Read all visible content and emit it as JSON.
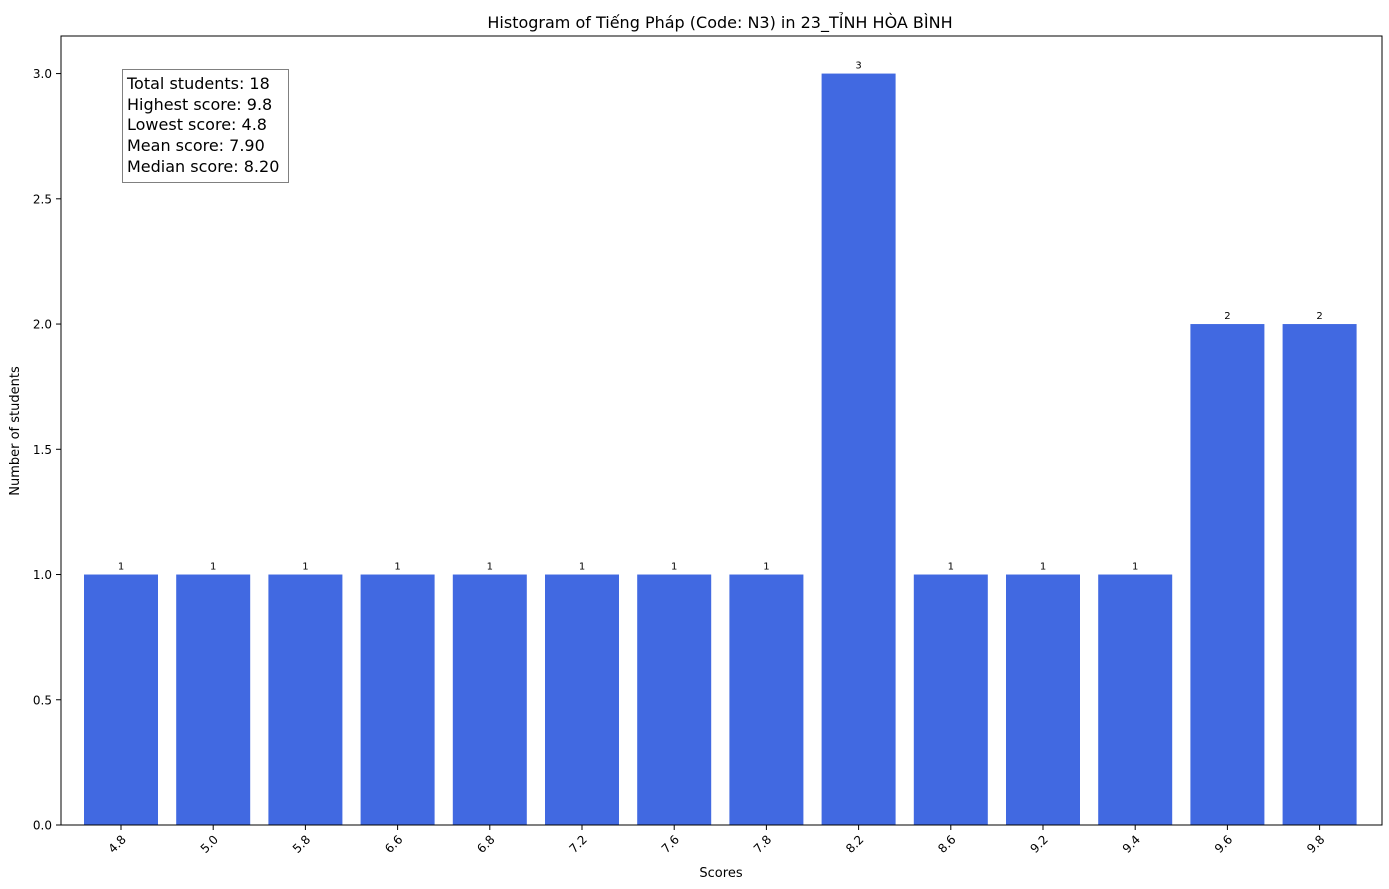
{
  "chart_data": {
    "type": "bar",
    "title": "Histogram of Tiếng Pháp (Code: N3) in 23_TỈNH HÒA BÌNH",
    "xlabel": "Scores",
    "ylabel": "Number of students",
    "categories": [
      "4.8",
      "5.0",
      "5.8",
      "6.6",
      "6.8",
      "7.2",
      "7.6",
      "7.8",
      "8.2",
      "8.6",
      "9.2",
      "9.4",
      "9.6",
      "9.8"
    ],
    "values": [
      1,
      1,
      1,
      1,
      1,
      1,
      1,
      1,
      3,
      1,
      1,
      1,
      2,
      2
    ],
    "ylim": [
      0,
      3.15
    ],
    "yticks": [
      "0.0",
      "0.5",
      "1.0",
      "1.5",
      "2.0",
      "2.5",
      "3.0"
    ],
    "bar_color": "#4169e1",
    "grid": false,
    "annotation": {
      "total": "Total students: 18",
      "highest": "Highest score: 9.8",
      "lowest": "Lowest score: 4.8",
      "mean": "Mean score: 7.90",
      "median": "Median score: 8.20"
    }
  }
}
